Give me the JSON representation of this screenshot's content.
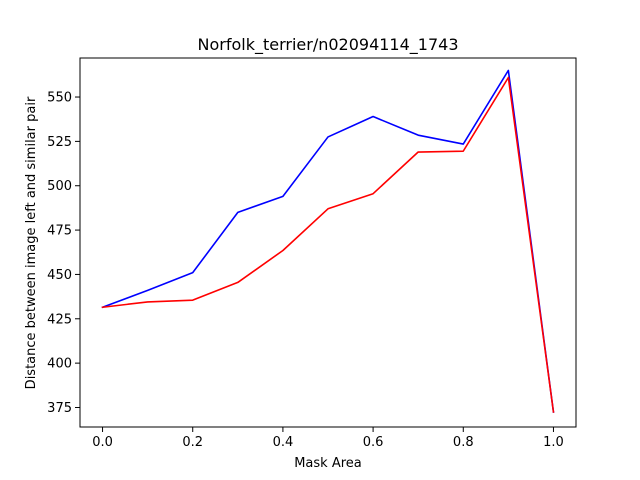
{
  "chart_data": {
    "type": "line",
    "title": "Norfolk_terrier/n02094114_1743",
    "xlabel": "Mask Area",
    "ylabel": "Distance between image left and similar pair",
    "xlim": [
      -0.05,
      1.05
    ],
    "ylim": [
      364,
      572
    ],
    "xticks": [
      0.0,
      0.2,
      0.4,
      0.6,
      0.8,
      1.0
    ],
    "xtick_labels": [
      "0.0",
      "0.2",
      "0.4",
      "0.6",
      "0.8",
      "1.0"
    ],
    "yticks": [
      375,
      400,
      425,
      450,
      475,
      500,
      525,
      550
    ],
    "ytick_labels": [
      "375",
      "400",
      "425",
      "450",
      "475",
      "500",
      "525",
      "550"
    ],
    "grid": false,
    "x": [
      0.0,
      0.1,
      0.2,
      0.3,
      0.4,
      0.5,
      0.6,
      0.7,
      0.8,
      0.9,
      1.0
    ],
    "series": [
      {
        "color": "#0000ff",
        "values": [
          431.5,
          441,
          451,
          485,
          494,
          527.5,
          539,
          528.5,
          523.5,
          565,
          372.5
        ]
      },
      {
        "color": "#ff0000",
        "values": [
          431.5,
          434.5,
          435.5,
          445.5,
          463.5,
          487,
          495.5,
          519,
          519.5,
          561,
          372.5
        ]
      }
    ]
  }
}
